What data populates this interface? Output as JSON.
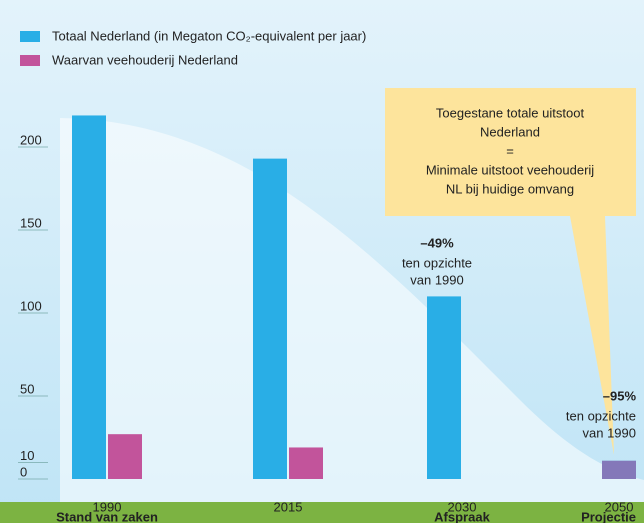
{
  "chart_data": {
    "type": "bar",
    "categories": [
      "1990",
      "2015",
      "2030",
      "2050"
    ],
    "category_sublabels": [
      "Stand van zaken",
      null,
      "Afspraak",
      "Projectie"
    ],
    "series": [
      {
        "name": "Totaal Nederland (in Megaton CO₂-equivalent per jaar)",
        "color": "#29aee6",
        "values": [
          219,
          193,
          110,
          11
        ]
      },
      {
        "name": "Waarvan veehouderij Nederland",
        "color": "#c2549b",
        "values": [
          27,
          19,
          null,
          11
        ]
      }
    ],
    "ylim": [
      0,
      220
    ],
    "yticks": [
      0,
      10,
      50,
      100,
      150,
      200
    ],
    "annotations": {
      "reduction_2030": {
        "percent": "–49%",
        "lines": [
          "ten opzichte",
          "van 1990"
        ]
      },
      "reduction_2050": {
        "percent": "–95%",
        "lines": [
          "ten opzichte",
          "van 1990"
        ]
      },
      "callout": [
        "Toegestane totale uitstoot",
        "Nederland",
        "=",
        "Minimale uitstoot veehouderij",
        "NL bij huidige omvang"
      ]
    }
  }
}
